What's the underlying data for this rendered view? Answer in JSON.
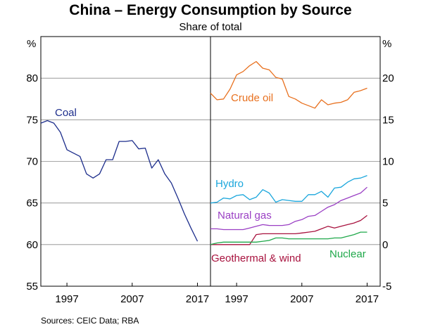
{
  "title": "China – Energy Consumption by Source",
  "subtitle": "Share of total",
  "source": "Sources:   CEIC Data; RBA",
  "chart_data": [
    {
      "type": "line",
      "panel": "left",
      "y_unit": "%",
      "ylim": [
        55,
        85
      ],
      "yticks": [
        "80",
        "75",
        "70",
        "65",
        "60",
        "55"
      ],
      "xlim": [
        1993,
        2019
      ],
      "xticks": [
        "1997",
        "2007",
        "2017"
      ],
      "grid": true,
      "series": [
        {
          "name": "Coal",
          "color": "#1d2e8c",
          "x": [
            1993,
            1994,
            1995,
            1996,
            1997,
            1998,
            1999,
            2000,
            2001,
            2002,
            2003,
            2004,
            2005,
            2006,
            2007,
            2008,
            2009,
            2010,
            2011,
            2012,
            2013,
            2014,
            2015,
            2016,
            2017
          ],
          "values": [
            74.6,
            74.9,
            74.6,
            73.5,
            71.4,
            71.0,
            70.6,
            68.5,
            68.0,
            68.5,
            70.2,
            70.2,
            72.4,
            72.4,
            72.5,
            71.5,
            71.6,
            69.2,
            70.2,
            68.5,
            67.4,
            65.6,
            63.7,
            62.0,
            60.4
          ]
        }
      ]
    },
    {
      "type": "line",
      "panel": "right",
      "y_unit": "%",
      "ylim": [
        -5,
        25
      ],
      "yticks": [
        "20",
        "15",
        "10",
        "5",
        "0",
        "-5"
      ],
      "xlim": [
        1993,
        2019
      ],
      "xticks": [
        "1997",
        "2007",
        "2017"
      ],
      "grid": true,
      "series": [
        {
          "name": "Crude oil",
          "color": "#e8701e",
          "x": [
            1993,
            1994,
            1995,
            1996,
            1997,
            1998,
            1999,
            2000,
            2001,
            2002,
            2003,
            2004,
            2005,
            2006,
            2007,
            2008,
            2009,
            2010,
            2011,
            2012,
            2013,
            2014,
            2015,
            2016,
            2017
          ],
          "values": [
            18.2,
            17.4,
            17.5,
            18.7,
            20.4,
            20.8,
            21.5,
            22.0,
            21.2,
            21.0,
            20.1,
            19.9,
            17.8,
            17.5,
            17.0,
            16.7,
            16.4,
            17.4,
            16.8,
            17.0,
            17.1,
            17.4,
            18.3,
            18.5,
            18.8
          ]
        },
        {
          "name": "Hydro",
          "color": "#1aa6dc",
          "x": [
            1993,
            1994,
            1995,
            1996,
            1997,
            1998,
            1999,
            2000,
            2001,
            2002,
            2003,
            2004,
            2005,
            2006,
            2007,
            2008,
            2009,
            2010,
            2011,
            2012,
            2013,
            2014,
            2015,
            2016,
            2017
          ],
          "values": [
            5.0,
            5.1,
            5.6,
            5.5,
            5.9,
            6.0,
            5.4,
            5.7,
            6.6,
            6.2,
            5.1,
            5.4,
            5.3,
            5.2,
            5.2,
            6.0,
            6.0,
            6.4,
            5.7,
            6.8,
            6.9,
            7.5,
            7.9,
            8.0,
            8.3
          ]
        },
        {
          "name": "Natural gas",
          "color": "#9a3fc4",
          "x": [
            1993,
            1994,
            1995,
            1996,
            1997,
            1998,
            1999,
            2000,
            2001,
            2002,
            2003,
            2004,
            2005,
            2006,
            2007,
            2008,
            2009,
            2010,
            2011,
            2012,
            2013,
            2014,
            2015,
            2016,
            2017
          ],
          "values": [
            1.9,
            1.9,
            1.8,
            1.8,
            1.8,
            1.8,
            2.0,
            2.2,
            2.4,
            2.3,
            2.3,
            2.3,
            2.4,
            2.8,
            3.0,
            3.4,
            3.5,
            4.0,
            4.5,
            4.8,
            5.3,
            5.6,
            5.9,
            6.2,
            6.9
          ]
        },
        {
          "name": "Geothermal & wind",
          "color": "#a8123e",
          "x": [
            1993,
            1994,
            1995,
            1996,
            1997,
            1998,
            1999,
            2000,
            2001,
            2002,
            2003,
            2004,
            2005,
            2006,
            2007,
            2008,
            2009,
            2010,
            2011,
            2012,
            2013,
            2014,
            2015,
            2016,
            2017
          ],
          "values": [
            0.0,
            0.0,
            0.0,
            0.0,
            0.0,
            0.0,
            0.0,
            1.2,
            1.3,
            1.3,
            1.3,
            1.3,
            1.3,
            1.3,
            1.4,
            1.5,
            1.6,
            1.9,
            2.2,
            2.0,
            2.2,
            2.4,
            2.6,
            2.9,
            3.5
          ]
        },
        {
          "name": "Nuclear",
          "color": "#1fa84a",
          "x": [
            1993,
            1994,
            1995,
            1996,
            1997,
            1998,
            1999,
            2000,
            2001,
            2002,
            2003,
            2004,
            2005,
            2006,
            2007,
            2008,
            2009,
            2010,
            2011,
            2012,
            2013,
            2014,
            2015,
            2016,
            2017
          ],
          "values": [
            0.0,
            0.2,
            0.3,
            0.3,
            0.3,
            0.3,
            0.3,
            0.3,
            0.4,
            0.5,
            0.8,
            0.8,
            0.7,
            0.7,
            0.7,
            0.7,
            0.7,
            0.7,
            0.7,
            0.8,
            0.8,
            1.0,
            1.2,
            1.5,
            1.5
          ]
        }
      ]
    }
  ]
}
